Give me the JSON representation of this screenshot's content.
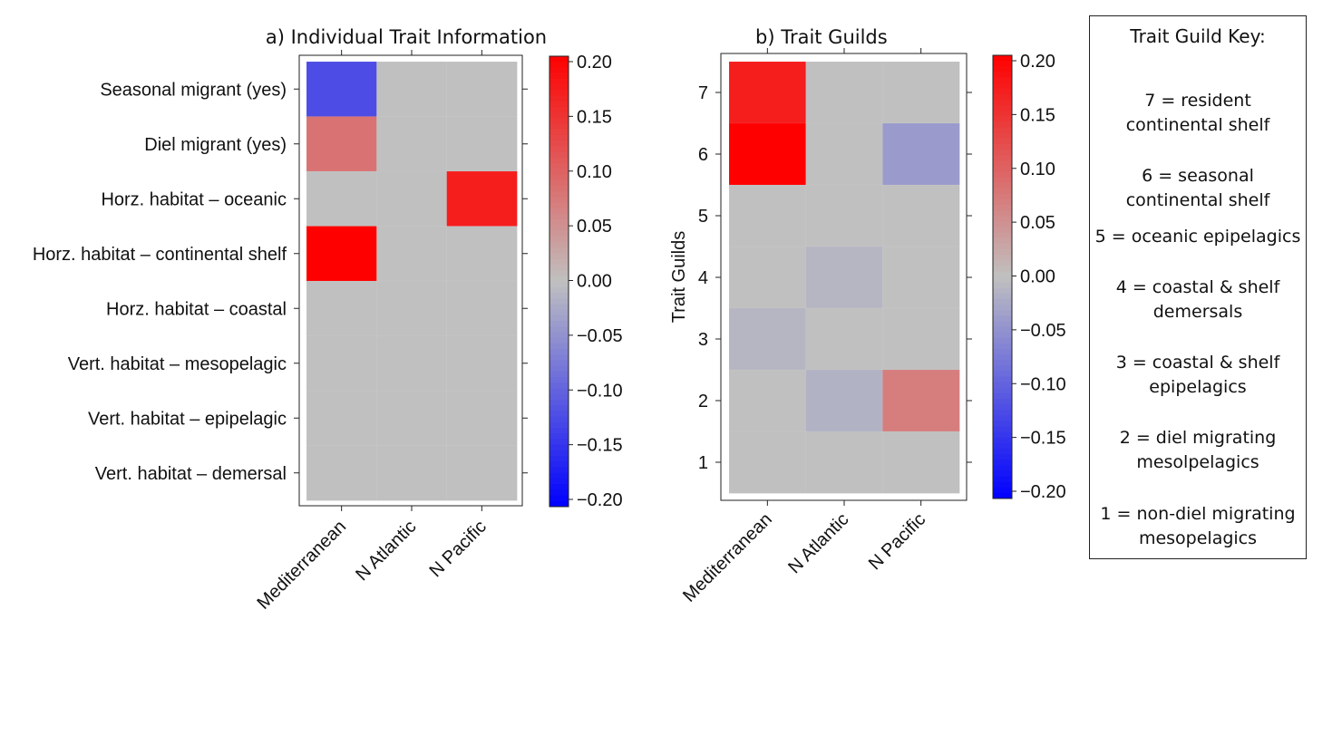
{
  "colorbar_range": [
    -0.2,
    0.2
  ],
  "colors": {
    "positive": "#ff0000",
    "negative": "#0000ff",
    "neutral": "#c0c0c0"
  },
  "chart_data": [
    {
      "type": "heatmap",
      "title": "a) Individual Trait Information",
      "xlabel": "",
      "ylabel": "",
      "x": [
        "Mediterranean",
        "N Atlantic",
        "N Pacific"
      ],
      "y": [
        "Seasonal migrant (yes)",
        "Diel migrant (yes)",
        "Horz. habitat – oceanic",
        "Horz. habitat – continental shelf",
        "Horz. habitat – coastal",
        "Vert. habitat – mesopelagic",
        "Vert. habitat – epipelagic",
        "Vert. habitat – demersal"
      ],
      "values": [
        [
          -0.12,
          0,
          0
        ],
        [
          0.08,
          0,
          0
        ],
        [
          0,
          0,
          0.17
        ],
        [
          0.21,
          0,
          0
        ],
        [
          0,
          0,
          0
        ],
        [
          0,
          0,
          0
        ],
        [
          0,
          0,
          0
        ],
        [
          0,
          0,
          0
        ]
      ],
      "zlim": [
        -0.2,
        0.2
      ],
      "colorbar_ticks": [
        "0.20",
        "0.15",
        "0.10",
        "0.05",
        "0.00",
        "−0.05",
        "−0.10",
        "−0.15",
        "−0.20"
      ]
    },
    {
      "type": "heatmap",
      "title": "b) Trait Guilds",
      "xlabel": "",
      "ylabel": "Trait Guilds",
      "x": [
        "Mediterranean",
        "N Atlantic",
        "N Pacific"
      ],
      "y": [
        "7",
        "6",
        "5",
        "4",
        "3",
        "2",
        "1"
      ],
      "values": [
        [
          0.17,
          0,
          0
        ],
        [
          0.21,
          0,
          -0.04
        ],
        [
          0,
          0,
          0
        ],
        [
          0,
          -0.01,
          0
        ],
        [
          -0.01,
          0,
          0
        ],
        [
          0,
          -0.015,
          0.07
        ],
        [
          0,
          0,
          0
        ]
      ],
      "zlim": [
        -0.2,
        0.2
      ],
      "colorbar_ticks": [
        "0.20",
        "0.15",
        "0.10",
        "0.05",
        "0.00",
        "−0.05",
        "−0.10",
        "−0.15",
        "−0.20"
      ]
    }
  ],
  "key": {
    "title": "Trait Guild Key:",
    "entries": [
      {
        "line1": "7 = resident",
        "line2": "continental shelf"
      },
      {
        "line1": "6 = seasonal",
        "line2": "continental shelf"
      },
      {
        "line1": "5 = oceanic epipelagics",
        "line2": ""
      },
      {
        "line1": "4 = coastal & shelf",
        "line2": "demersals"
      },
      {
        "line1": "3 = coastal & shelf",
        "line2": "epipelagics"
      },
      {
        "line1": "2 = diel migrating",
        "line2": "mesolpelagics"
      },
      {
        "line1": "1 = non-diel migrating",
        "line2": "mesopelagics"
      }
    ]
  }
}
